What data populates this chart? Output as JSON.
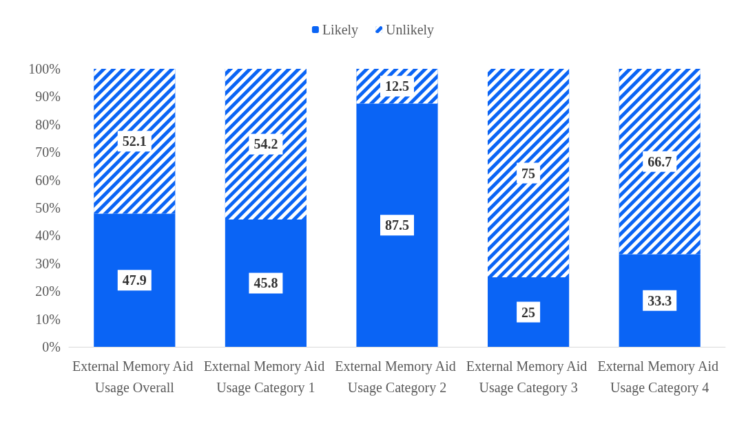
{
  "chart_data": {
    "type": "bar",
    "stacked": true,
    "legend": "top",
    "data_labels": true,
    "categories": [
      "External Memory Aid Usage Overall",
      "External Memory Aid Usage Category 1",
      "External Memory Aid Usage Category 2",
      "External Memory Aid Usage Category 3",
      "External Memory Aid Usage Category 4"
    ],
    "series": [
      {
        "name": "Likely",
        "color": "#0a64f5",
        "values": [
          47.9,
          45.8,
          87.5,
          25,
          33.3
        ]
      },
      {
        "name": "Unlikely",
        "color": "#0a64f5",
        "values": [
          52.1,
          54.2,
          12.5,
          75,
          66.7
        ]
      }
    ],
    "ylim": [
      0,
      100
    ],
    "yticks": [
      {
        "value": 0,
        "label": "0%"
      },
      {
        "value": 10,
        "label": "10%"
      },
      {
        "value": 20,
        "label": "20%"
      },
      {
        "value": 30,
        "label": "30%"
      },
      {
        "value": 40,
        "label": "40%"
      },
      {
        "value": 50,
        "label": "50%"
      },
      {
        "value": 60,
        "label": "60%"
      },
      {
        "value": 70,
        "label": "70%"
      },
      {
        "value": 80,
        "label": "80%"
      },
      {
        "value": 90,
        "label": "90%"
      },
      {
        "value": 100,
        "label": "100%"
      }
    ]
  }
}
